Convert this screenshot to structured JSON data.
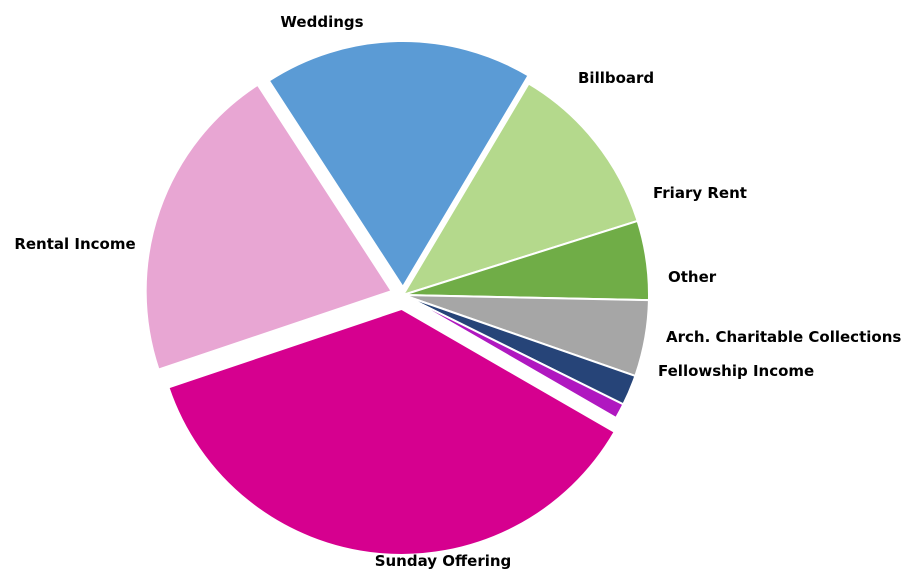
{
  "chart_data": {
    "type": "pie",
    "title": "",
    "legend": "none",
    "labels_position": "outside",
    "slices": [
      {
        "label": "Sunday Offering",
        "value": 36.5,
        "color": "#D6008F"
      },
      {
        "label": "Rental Income",
        "value": 21.0,
        "color": "#E8A6D3"
      },
      {
        "label": "Weddings",
        "value": 17.7,
        "color": "#5B9BD5"
      },
      {
        "label": "Billboard",
        "value": 11.6,
        "color": "#B4D98C"
      },
      {
        "label": "Friary Rent",
        "value": 5.2,
        "color": "#70AD47"
      },
      {
        "label": "Other",
        "value": 5.0,
        "color": "#A6A6A6"
      },
      {
        "label": "Arch. Charitable Collections",
        "value": 2.0,
        "color": "#264478"
      },
      {
        "label": "Fellowship Income",
        "value": 1.0,
        "color": "#B018C0"
      }
    ]
  }
}
